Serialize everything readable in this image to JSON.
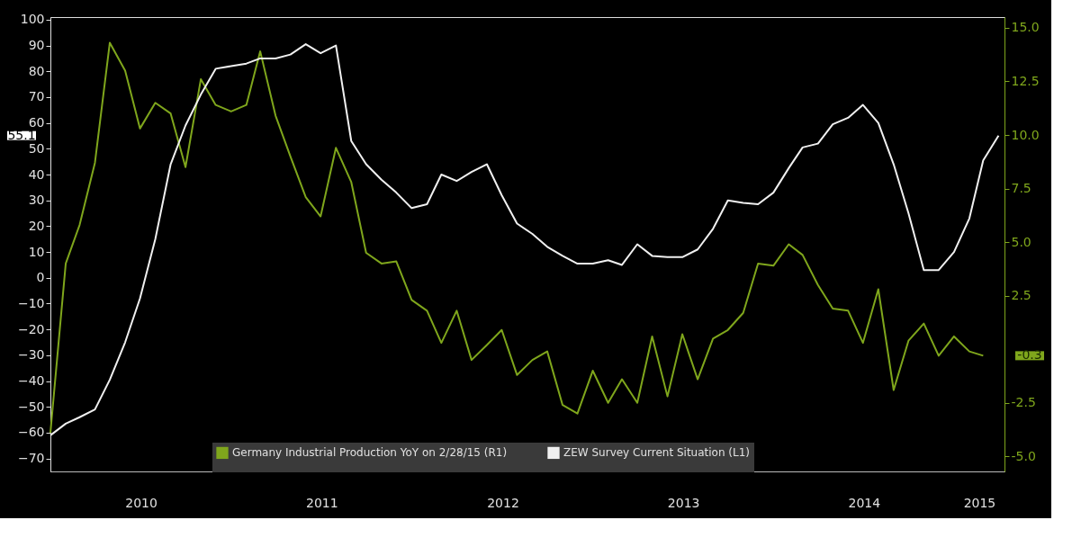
{
  "chart_data": {
    "type": "line",
    "x": [
      "2009-12-31",
      "2010-01-31",
      "2010-02-28",
      "2010-03-31",
      "2010-04-30",
      "2010-05-31",
      "2010-06-30",
      "2010-07-31",
      "2010-08-31",
      "2010-09-30",
      "2010-10-31",
      "2010-11-30",
      "2010-12-31",
      "2011-01-31",
      "2011-02-28",
      "2011-03-31",
      "2011-04-30",
      "2011-05-31",
      "2011-06-30",
      "2011-07-31",
      "2011-08-31",
      "2011-09-30",
      "2011-10-31",
      "2011-11-30",
      "2011-12-31",
      "2012-01-31",
      "2012-02-29",
      "2012-03-31",
      "2012-04-30",
      "2012-05-31",
      "2012-06-30",
      "2012-07-31",
      "2012-08-31",
      "2012-09-30",
      "2012-10-31",
      "2012-11-30",
      "2012-12-31",
      "2013-01-31",
      "2013-02-28",
      "2013-03-31",
      "2013-04-30",
      "2013-05-31",
      "2013-06-30",
      "2013-07-31",
      "2013-08-31",
      "2013-09-30",
      "2013-10-31",
      "2013-11-30",
      "2013-12-31",
      "2014-01-31",
      "2014-02-28",
      "2014-03-31",
      "2014-04-30",
      "2014-05-31",
      "2014-06-30",
      "2014-07-31",
      "2014-08-31",
      "2014-09-30",
      "2014-10-31",
      "2014-11-30",
      "2014-12-31",
      "2015-01-31",
      "2015-02-28",
      "2015-03-31"
    ],
    "series": [
      {
        "name": "Germany Industrial Production YoY  on 2/28/15 (R1)",
        "color": "#7fa61c",
        "axis": "y2",
        "values": [
          -3.9,
          4.0,
          5.8,
          8.7,
          14.3,
          13.0,
          10.3,
          11.5,
          11.0,
          8.5,
          12.6,
          11.4,
          11.1,
          11.4,
          13.9,
          10.9,
          9.0,
          7.1,
          6.2,
          9.4,
          7.8,
          4.5,
          4.0,
          4.1,
          2.3,
          1.8,
          0.3,
          1.8,
          -0.5,
          0.2,
          0.9,
          -1.2,
          -0.5,
          -0.1,
          -2.6,
          -3.0,
          -1.0,
          -2.5,
          -1.4,
          -2.5,
          0.6,
          -2.2,
          0.7,
          -1.4,
          0.5,
          0.9,
          1.7,
          4.0,
          3.9,
          4.9,
          4.4,
          3.0,
          1.9,
          1.8,
          0.3,
          2.8,
          -1.9,
          0.4,
          1.2,
          -0.3,
          0.6,
          -0.1,
          -0.3,
          null
        ]
      },
      {
        "name": "ZEW Survey Current Situation (L1)",
        "color": "#f0f0f0",
        "axis": "y",
        "values": [
          -61,
          -56.5,
          -54,
          -51,
          -39.5,
          -25,
          -8,
          15,
          44,
          59,
          71,
          81,
          82,
          83,
          85,
          85,
          86.5,
          90.5,
          87,
          90,
          53,
          44,
          38,
          33,
          27,
          28.5,
          40,
          37.5,
          41,
          44,
          32,
          21,
          17,
          12,
          8.5,
          5.5,
          5.5,
          6.8,
          5,
          13,
          8.5,
          8,
          8,
          11,
          19,
          30,
          29,
          28.5,
          33,
          42.5,
          50.5,
          52,
          59.5,
          62,
          67,
          60,
          44,
          25,
          3,
          3,
          10,
          23,
          45.5,
          55.1
        ]
      }
    ],
    "xlim": [
      "2009-12-31",
      "2015-04-12"
    ],
    "xticks": [
      {
        "value": "2010-07-02",
        "label": "2010"
      },
      {
        "value": "2011-07-02",
        "label": "2011"
      },
      {
        "value": "2012-07-02",
        "label": "2012"
      },
      {
        "value": "2013-07-02",
        "label": "2013"
      },
      {
        "value": "2014-07-02",
        "label": "2014"
      },
      {
        "value": "2015-02-20",
        "label": "2015"
      }
    ],
    "ylim": [
      -75,
      101
    ],
    "yticks": [
      -70,
      -60,
      -50,
      -40,
      -30,
      -20,
      -10,
      0,
      10,
      20,
      30,
      40,
      50,
      60,
      70,
      80,
      90,
      100
    ],
    "y2lim": [
      -5.7,
      15.5
    ],
    "y2ticks": [
      {
        "value": -5,
        "label": "-5.0"
      },
      {
        "value": -2.5,
        "label": "-2.5"
      },
      {
        "value": 2.5,
        "label": "2.5"
      },
      {
        "value": 5,
        "label": "5.0"
      },
      {
        "value": 7.5,
        "label": "7.5"
      },
      {
        "value": 10,
        "label": "10.0"
      },
      {
        "value": 12.5,
        "label": "12.5"
      },
      {
        "value": 15,
        "label": "15.0"
      }
    ],
    "annotations": [
      "-0.3",
      "55.1"
    ],
    "legend": "bottom",
    "grid": false,
    "line_style": "solid"
  }
}
